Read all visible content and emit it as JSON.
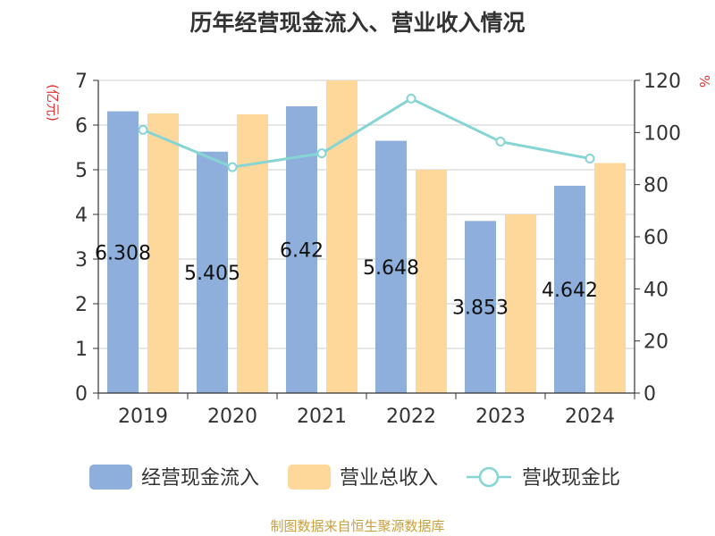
{
  "chart_data": {
    "type": "bar",
    "title": "历年经营现金流入、营业收入情况",
    "categories": [
      "2019",
      "2020",
      "2021",
      "2022",
      "2023",
      "2024"
    ],
    "series": [
      {
        "name": "经营现金流入",
        "type": "bar",
        "axis": "left",
        "color": "#8EAEDB",
        "values": [
          6.308,
          5.405,
          6.42,
          5.648,
          3.853,
          4.642
        ],
        "labels": [
          "6.308",
          "5.405",
          "6.42",
          "5.648",
          "3.853",
          "4.642"
        ]
      },
      {
        "name": "营业总收入",
        "type": "bar",
        "axis": "left",
        "color": "#FDD89A",
        "values": [
          6.26,
          6.24,
          7.0,
          5.0,
          4.0,
          5.15
        ]
      },
      {
        "name": "营收现金比",
        "type": "line",
        "axis": "right",
        "color": "#86D4D4",
        "values": [
          101,
          86.7,
          92,
          113,
          96.5,
          90
        ]
      }
    ],
    "y_left": {
      "unit": "(亿元)",
      "min": 0,
      "max": 7,
      "ticks": [
        "0",
        "1",
        "2",
        "3",
        "4",
        "5",
        "6",
        "7"
      ]
    },
    "y_right": {
      "unit": "%",
      "min": 0,
      "max": 120,
      "ticks": [
        "0",
        "20",
        "40",
        "60",
        "80",
        "100",
        "120"
      ]
    },
    "grid": true,
    "legend_position": "bottom",
    "source": "制图数据来自恒生聚源数据库",
    "colors": {
      "unit": "#E03030",
      "source": "#C8A040",
      "axis": "#333333",
      "grid": "#CCCCCC"
    }
  }
}
